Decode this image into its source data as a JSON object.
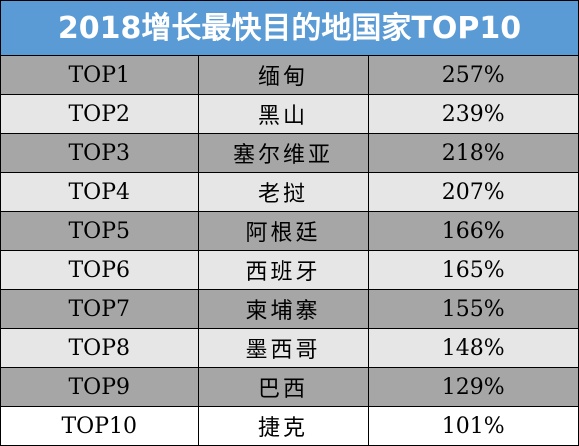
{
  "title": "2018增长最快目的地国家TOP10",
  "rows": [
    {
      "rank": "TOP1",
      "country": "缅甸",
      "growth": "257%"
    },
    {
      "rank": "TOP2",
      "country": "黑山",
      "growth": "239%"
    },
    {
      "rank": "TOP3",
      "country": "塞尔维亚",
      "growth": "218%"
    },
    {
      "rank": "TOP4",
      "country": "老挝",
      "growth": "207%"
    },
    {
      "rank": "TOP5",
      "country": "阿根廷",
      "growth": "166%"
    },
    {
      "rank": "TOP6",
      "country": "西班牙",
      "growth": "165%"
    },
    {
      "rank": "TOP7",
      "country": "柬埔寨",
      "growth": "155%"
    },
    {
      "rank": "TOP8",
      "country": "墨西哥",
      "growth": "148%"
    },
    {
      "rank": "TOP9",
      "country": "巴西",
      "growth": "129%"
    },
    {
      "rank": "TOP10",
      "country": "捷克",
      "growth": "101%"
    }
  ],
  "colors": {
    "title_bg": "#5b9bd5",
    "row_dark": "#a6a6a6",
    "row_light": "#e7e6e6",
    "row_last": "#ffffff"
  }
}
